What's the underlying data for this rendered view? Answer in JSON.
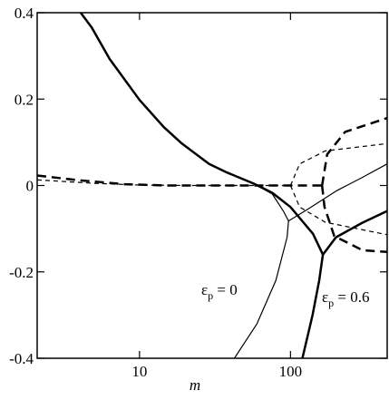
{
  "chart_data": {
    "type": "line",
    "xlabel": "m",
    "xscale": "log",
    "xlim": [
      2.1,
      437
    ],
    "ylim": [
      -0.4,
      0.4
    ],
    "xticks": [
      10,
      100
    ],
    "yticks": [
      0.4,
      0.2,
      0,
      -0.2,
      -0.4
    ],
    "series": [
      {
        "color": "#000000",
        "width": 2.5,
        "dash": "none",
        "x": [
          4.08,
          4.82,
          6.34,
          10,
          14.5,
          19.1,
          28.9,
          38,
          57.5,
          75.9,
          100,
          141,
          164
        ],
        "values": [
          0.4,
          0.366,
          0.293,
          0.198,
          0.135,
          0.097,
          0.05,
          0.03,
          0.004,
          -0.017,
          -0.05,
          -0.112,
          -0.16
        ]
      },
      {
        "color": "#000000",
        "width": 2.5,
        "dash": "none",
        "x": [
          164,
          155,
          140,
          120
        ],
        "values": [
          -0.16,
          -0.22,
          -0.3,
          -0.4
        ]
      },
      {
        "color": "#000000",
        "width": 2.5,
        "dash": "none",
        "x": [
          164,
          200,
          300,
          437
        ],
        "values": [
          -0.16,
          -0.12,
          -0.086,
          -0.059
        ]
      },
      {
        "color": "#000000",
        "width": 1.2,
        "dash": "none",
        "x": [
          57.5,
          75.9,
          90,
          97
        ],
        "values": [
          0.004,
          -0.02,
          -0.06,
          -0.082
        ]
      },
      {
        "color": "#000000",
        "width": 1.2,
        "dash": "none",
        "x": [
          97,
          95,
          80,
          60,
          42.5
        ],
        "values": [
          -0.082,
          -0.12,
          -0.22,
          -0.32,
          -0.4
        ]
      },
      {
        "color": "#000000",
        "width": 1.2,
        "dash": "none",
        "x": [
          97,
          130,
          200,
          300,
          437
        ],
        "values": [
          -0.082,
          -0.055,
          -0.013,
          0.019,
          0.05
        ]
      },
      {
        "color": "#000000",
        "width": 2.5,
        "dash": "10 6",
        "x": [
          2.1,
          4,
          8,
          15,
          100,
          162
        ],
        "values": [
          0.023,
          0.012,
          0.003,
          0,
          0,
          0
        ]
      },
      {
        "color": "#000000",
        "width": 2.5,
        "dash": "10 6",
        "x": [
          162,
          175,
          230,
          437
        ],
        "values": [
          0,
          0.072,
          0.124,
          0.156
        ]
      },
      {
        "color": "#000000",
        "width": 2.5,
        "dash": "10 6",
        "x": [
          162,
          168,
          195,
          300,
          437
        ],
        "values": [
          0,
          -0.05,
          -0.117,
          -0.15,
          -0.154
        ]
      },
      {
        "color": "#000000",
        "width": 1.2,
        "dash": "5 4",
        "x": [
          2.1,
          5,
          10,
          20,
          100
        ],
        "values": [
          0.013,
          0.005,
          0.001,
          0,
          0
        ]
      },
      {
        "color": "#000000",
        "width": 1.2,
        "dash": "5 4",
        "x": [
          100,
          115,
          170,
          437
        ],
        "values": [
          0,
          0.05,
          0.08,
          0.097
        ]
      },
      {
        "color": "#000000",
        "width": 1.2,
        "dash": "5 4",
        "x": [
          100,
          115,
          170,
          437
        ],
        "values": [
          0,
          -0.05,
          -0.085,
          -0.114
        ]
      }
    ],
    "annotations": [
      {
        "text": "ε",
        "subscript": "p",
        "suffix": " = 0"
      },
      {
        "text": "ε",
        "subscript": "p",
        "suffix": " = 0.6"
      }
    ]
  }
}
